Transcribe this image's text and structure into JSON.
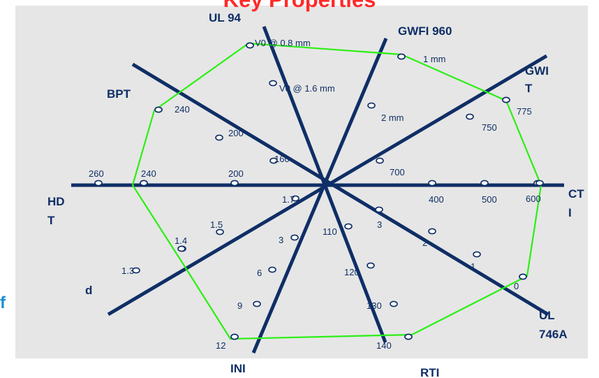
{
  "title": "Key Properties",
  "side_letter": "f",
  "chart_data": {
    "type": "radar",
    "title": "Key Properties",
    "axes": [
      {
        "id": "ul94",
        "label": [
          "UL 94"
        ],
        "ticks": [
          "V0 @ 0.8 mm",
          "V0 @ 1.6  mm",
          "160"
        ]
      },
      {
        "id": "gwfi",
        "label": [
          "GWFI 960"
        ],
        "ticks": [
          "1 mm",
          "2 mm",
          "700"
        ]
      },
      {
        "id": "gwit",
        "label": [
          "GWI",
          "T"
        ],
        "ticks": [
          "775",
          "750"
        ]
      },
      {
        "id": "cti",
        "label": [
          "CT",
          "I"
        ],
        "ticks": [
          "600",
          "500",
          "400"
        ]
      },
      {
        "id": "ul746a",
        "label": [
          "UL",
          "746A"
        ],
        "ticks": [
          "0",
          "1",
          "2",
          "3"
        ]
      },
      {
        "id": "rti",
        "label": [
          "RTI"
        ],
        "ticks": [
          "140",
          "130",
          "120",
          "110"
        ]
      },
      {
        "id": "ini",
        "label": [
          "INI"
        ],
        "ticks": [
          "12",
          "9",
          "6",
          "3"
        ]
      },
      {
        "id": "d",
        "label": [
          "d"
        ],
        "ticks": [
          "1.3",
          "1.4",
          "1.5",
          "1.7"
        ]
      },
      {
        "id": "hdt",
        "label": [
          "HD",
          "T"
        ],
        "ticks": [
          "260",
          "240",
          "200"
        ]
      },
      {
        "id": "bpt",
        "label": [
          "BPT"
        ],
        "ticks": [
          "240",
          "200"
        ]
      }
    ],
    "series": [
      {
        "color": "#2bef14",
        "values": [
          {
            "axis": "ul94",
            "value": "V0 @ 0.8 mm"
          },
          {
            "axis": "gwfi",
            "value": "1 mm"
          },
          {
            "axis": "gwit",
            "value": "775"
          },
          {
            "axis": "cti",
            "value": 600
          },
          {
            "axis": "ul746a",
            "value": 0
          },
          {
            "axis": "rti",
            "value": 140
          },
          {
            "axis": "ini",
            "value": 12
          },
          {
            "axis": "d",
            "value": 1.4
          },
          {
            "axis": "hdt",
            "value": 240
          },
          {
            "axis": "bpt",
            "value": 240
          }
        ]
      }
    ],
    "colors": {
      "axis": "#0f2e66",
      "title": "#ff2a2a",
      "background": "#e6e6e6",
      "series": "#2bef14"
    }
  }
}
